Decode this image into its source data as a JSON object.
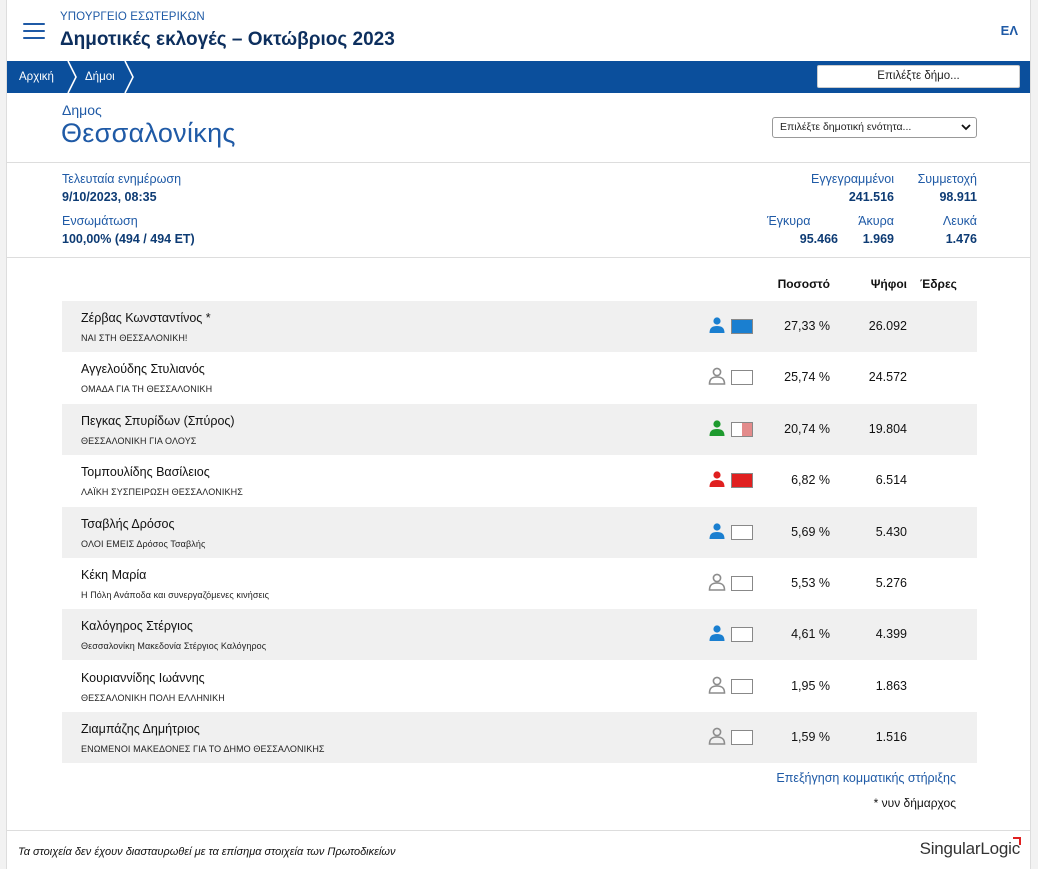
{
  "header": {
    "ministry": "ΥΠΟΥΡΓΕΙΟ ΕΣΩΤΕΡΙΚΩΝ",
    "title": "Δημοτικές εκλογές – Οκτώβριος 2023",
    "language": "ΕΛ",
    "menu_icon": "hamburger-icon"
  },
  "breadcrumb": {
    "items": [
      "Αρχική",
      "Δήμοι"
    ],
    "municipality_button": "Επιλέξτε δήμο..."
  },
  "municipality": {
    "label": "Δημος",
    "name": "Θεσσαλονίκης",
    "unit_select": "Επιλέξτε δημοτική ενότητα..."
  },
  "stats": {
    "last_update_label": "Τελευταία ενημέρωση",
    "last_update_value": "9/10/2023, 08:35",
    "integration_label": "Ενσωμάτωση",
    "integration_value": "100,00% (494 / 494 ΕΤ)",
    "registered_label": "Εγγεγραμμένοι",
    "registered_value": "241.516",
    "turnout_label": "Συμμετοχή",
    "turnout_value": "98.911",
    "valid_label": "Έγκυρα",
    "valid_value": "95.466",
    "invalid_label": "Άκυρα",
    "invalid_value": "1.969",
    "blank_label": "Λευκά",
    "blank_value": "1.476"
  },
  "results": {
    "columns": {
      "percent": "Ποσοστό",
      "votes": "Ψήφοι",
      "seats": "Έδρες"
    },
    "candidates": [
      {
        "name": "Ζέρβας Κωνσταντίνος *",
        "list": "ΝΑΙ ΣΤΗ ΘΕΣΣΑΛΟΝΙΚΗ!",
        "percent": "27,33 %",
        "votes": "26.092",
        "seats": "",
        "person_color": "#1a7fd0",
        "swatch": [
          "#1a7fd0",
          "#1a7fd0"
        ]
      },
      {
        "name": "Αγγελούδης Στυλιανός",
        "list": "ΟΜΑΔΑ ΓΙΑ ΤΗ ΘΕΣΣΑΛΟΝΙΚΗ",
        "percent": "25,74 %",
        "votes": "24.572",
        "seats": "",
        "person_color": "#8c8c8c",
        "swatch": [
          "#ffffff",
          "#ffffff"
        ]
      },
      {
        "name": "Πεγκας Σπυρίδων (Σπύρος)",
        "list": "ΘΕΣΣΑΛΟΝΙΚΗ ΓΙΑ ΟΛΟΥΣ",
        "percent": "20,74 %",
        "votes": "19.804",
        "seats": "",
        "person_color": "#1e9a2e",
        "swatch": [
          "#ffffff",
          "#e38b8b"
        ]
      },
      {
        "name": "Τομπουλίδης Βασίλειος",
        "list": "ΛΑΪΚΗ ΣΥΣΠΕΙΡΩΣΗ ΘΕΣΣΑΛΟΝΙΚΗΣ",
        "percent": "6,82 %",
        "votes": "6.514",
        "seats": "",
        "person_color": "#e02020",
        "swatch": [
          "#e02020",
          "#e02020"
        ]
      },
      {
        "name": "Τσαβλής Δρόσος",
        "list": "ΟΛΟΙ ΕΜΕΙΣ Δρόσος Τσαβλής",
        "percent": "5,69 %",
        "votes": "5.430",
        "seats": "",
        "person_color": "#1a7fd0",
        "swatch": [
          "#ffffff",
          "#ffffff"
        ]
      },
      {
        "name": "Κέκη Μαρία",
        "list": "Η Πόλη Ανάποδα και συνεργαζόμενες κινήσεις",
        "percent": "5,53 %",
        "votes": "5.276",
        "seats": "",
        "person_color": "#8c8c8c",
        "swatch": [
          "#ffffff",
          "#ffffff"
        ]
      },
      {
        "name": "Καλόγηρος Στέργιος",
        "list": "Θεσσαλονίκη Μακεδονία Στέργιος Καλόγηρος",
        "percent": "4,61 %",
        "votes": "4.399",
        "seats": "",
        "person_color": "#1a7fd0",
        "swatch": [
          "#ffffff",
          "#ffffff"
        ]
      },
      {
        "name": "Κουριαννίδης Ιωάννης",
        "list": "ΘΕΣΣΑΛΟΝΙΚΗ ΠΟΛΗ ΕΛΛΗΝΙΚΗ",
        "percent": "1,95 %",
        "votes": "1.863",
        "seats": "",
        "person_color": "#8c8c8c",
        "swatch": [
          "#ffffff",
          "#ffffff"
        ]
      },
      {
        "name": "Ζιαμπάζης Δημήτριος",
        "list": "ΕΝΩΜΕΝΟΙ ΜΑΚΕΔΟΝΕΣ ΓΙΑ ΤΟ ΔΗΜΟ ΘΕΣΣΑΛΟΝΙΚΗΣ",
        "percent": "1,59 %",
        "votes": "1.516",
        "seats": "",
        "person_color": "#8c8c8c",
        "swatch": [
          "#ffffff",
          "#ffffff"
        ]
      }
    ],
    "explain_link": "Επεξήγηση κομματικής στήριξης",
    "footnote": "* νυν δήμαρχος"
  },
  "footer": {
    "disclaimer": "Τα στοιχεία δεν έχουν διασταυρωθεί με τα επίσημα στοιχεία των Πρωτοδικείων",
    "logo_text": "SingularLogic"
  },
  "colors": {
    "brand_blue": "#0b4f9c",
    "link_blue": "#1f5aa6",
    "row_shade": "#f0f0f0"
  }
}
